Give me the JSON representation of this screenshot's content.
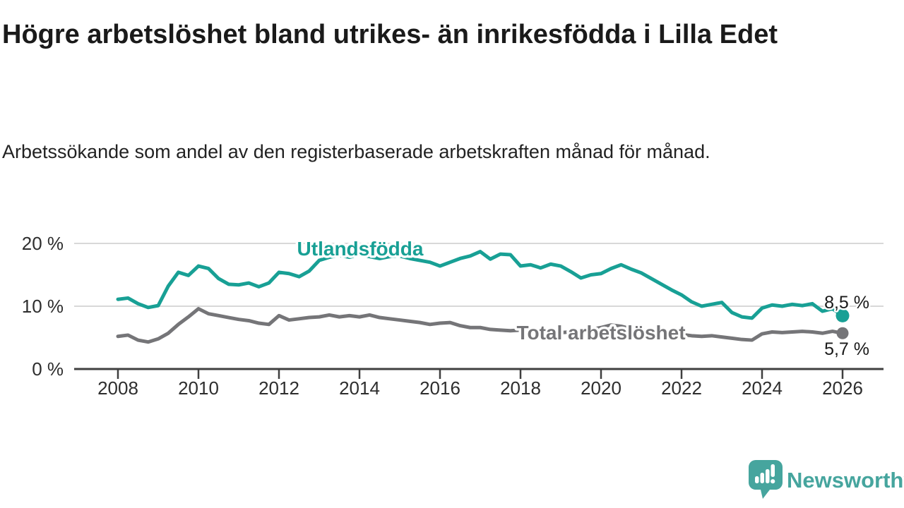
{
  "chart_data": {
    "type": "line",
    "title": "Högre arbetslöshet bland utrikes- än inrikesfödda i Lilla Edet",
    "subtitle": "Arbetssökande som andel av den registerbaserade arbetskraften månad för månad.",
    "unit": "%",
    "x_start": 2008,
    "x_step": 0.25,
    "xlim": [
      2007.5,
      2027
    ],
    "ylim": [
      0,
      22
    ],
    "grid": "horizontal",
    "gridlines_at": [
      10,
      20
    ],
    "legend_position": "inline-labels",
    "y_ticks": [
      {
        "value": 0,
        "label": "0 %"
      },
      {
        "value": 10,
        "label": "10 %"
      },
      {
        "value": 20,
        "label": "20 %"
      }
    ],
    "x_ticks": [
      {
        "value": 2008,
        "label": "2008"
      },
      {
        "value": 2010,
        "label": "2010"
      },
      {
        "value": 2012,
        "label": "2012"
      },
      {
        "value": 2014,
        "label": "2014"
      },
      {
        "value": 2016,
        "label": "2016"
      },
      {
        "value": 2018,
        "label": "2018"
      },
      {
        "value": 2020,
        "label": "2020"
      },
      {
        "value": 2022,
        "label": "2022"
      },
      {
        "value": 2024,
        "label": "2024"
      },
      {
        "value": 2026,
        "label": "2026"
      }
    ],
    "series": [
      {
        "name": "Utlandsfödda",
        "color": "#18a095",
        "end_value": 8.5,
        "end_value_label": "8,5 %",
        "values": [
          11.1,
          11.3,
          10.4,
          9.8,
          10.1,
          13.2,
          15.4,
          14.9,
          16.4,
          16.0,
          14.4,
          13.5,
          13.4,
          13.7,
          13.1,
          13.7,
          15.4,
          15.2,
          14.7,
          15.6,
          17.3,
          17.8,
          18.1,
          17.8,
          18.2,
          17.9,
          17.6,
          17.9,
          18.0,
          17.6,
          17.3,
          17.0,
          16.4,
          17.0,
          17.6,
          18.0,
          18.7,
          17.5,
          18.3,
          18.2,
          16.4,
          16.6,
          16.1,
          16.7,
          16.4,
          15.5,
          14.5,
          15.0,
          15.2,
          16.0,
          16.6,
          15.9,
          15.3,
          14.4,
          13.5,
          12.6,
          11.8,
          10.7,
          10.0,
          10.3,
          10.6,
          9.0,
          8.3,
          8.1,
          9.7,
          10.2,
          10.0,
          10.3,
          10.1,
          10.4,
          9.2,
          9.6,
          8.5
        ]
      },
      {
        "name": "Total arbetslöshet",
        "color": "#757578",
        "end_value": 5.7,
        "end_value_label": "5,7 %",
        "values": [
          5.2,
          5.4,
          4.6,
          4.3,
          4.8,
          5.7,
          7.1,
          8.3,
          9.6,
          8.8,
          8.5,
          8.2,
          7.9,
          7.7,
          7.3,
          7.1,
          8.5,
          7.8,
          8.0,
          8.2,
          8.3,
          8.6,
          8.3,
          8.5,
          8.3,
          8.6,
          8.2,
          8.0,
          7.8,
          7.6,
          7.4,
          7.1,
          7.3,
          7.4,
          6.9,
          6.6,
          6.6,
          6.3,
          6.2,
          6.1,
          6.2,
          6.0,
          5.9,
          5.8,
          5.8,
          5.9,
          6.1,
          6.3,
          6.6,
          7.0,
          6.8,
          6.4,
          6.2,
          6.0,
          5.8,
          5.6,
          5.5,
          5.3,
          5.2,
          5.3,
          5.1,
          4.9,
          4.7,
          4.6,
          5.6,
          5.9,
          5.8,
          5.9,
          6.0,
          5.9,
          5.7,
          6.0,
          5.7
        ]
      }
    ],
    "colors": {
      "gridline": "#d8d8d8",
      "axis": "#3f3f3f",
      "tick_text": "#2e2e2e",
      "end_label_text": "#1a1a1a"
    }
  },
  "branding": {
    "logo_text": "Newsworthy",
    "logo_icon": "bar-chart-speech-bubble-icon",
    "logo_color": "#46a59e"
  }
}
